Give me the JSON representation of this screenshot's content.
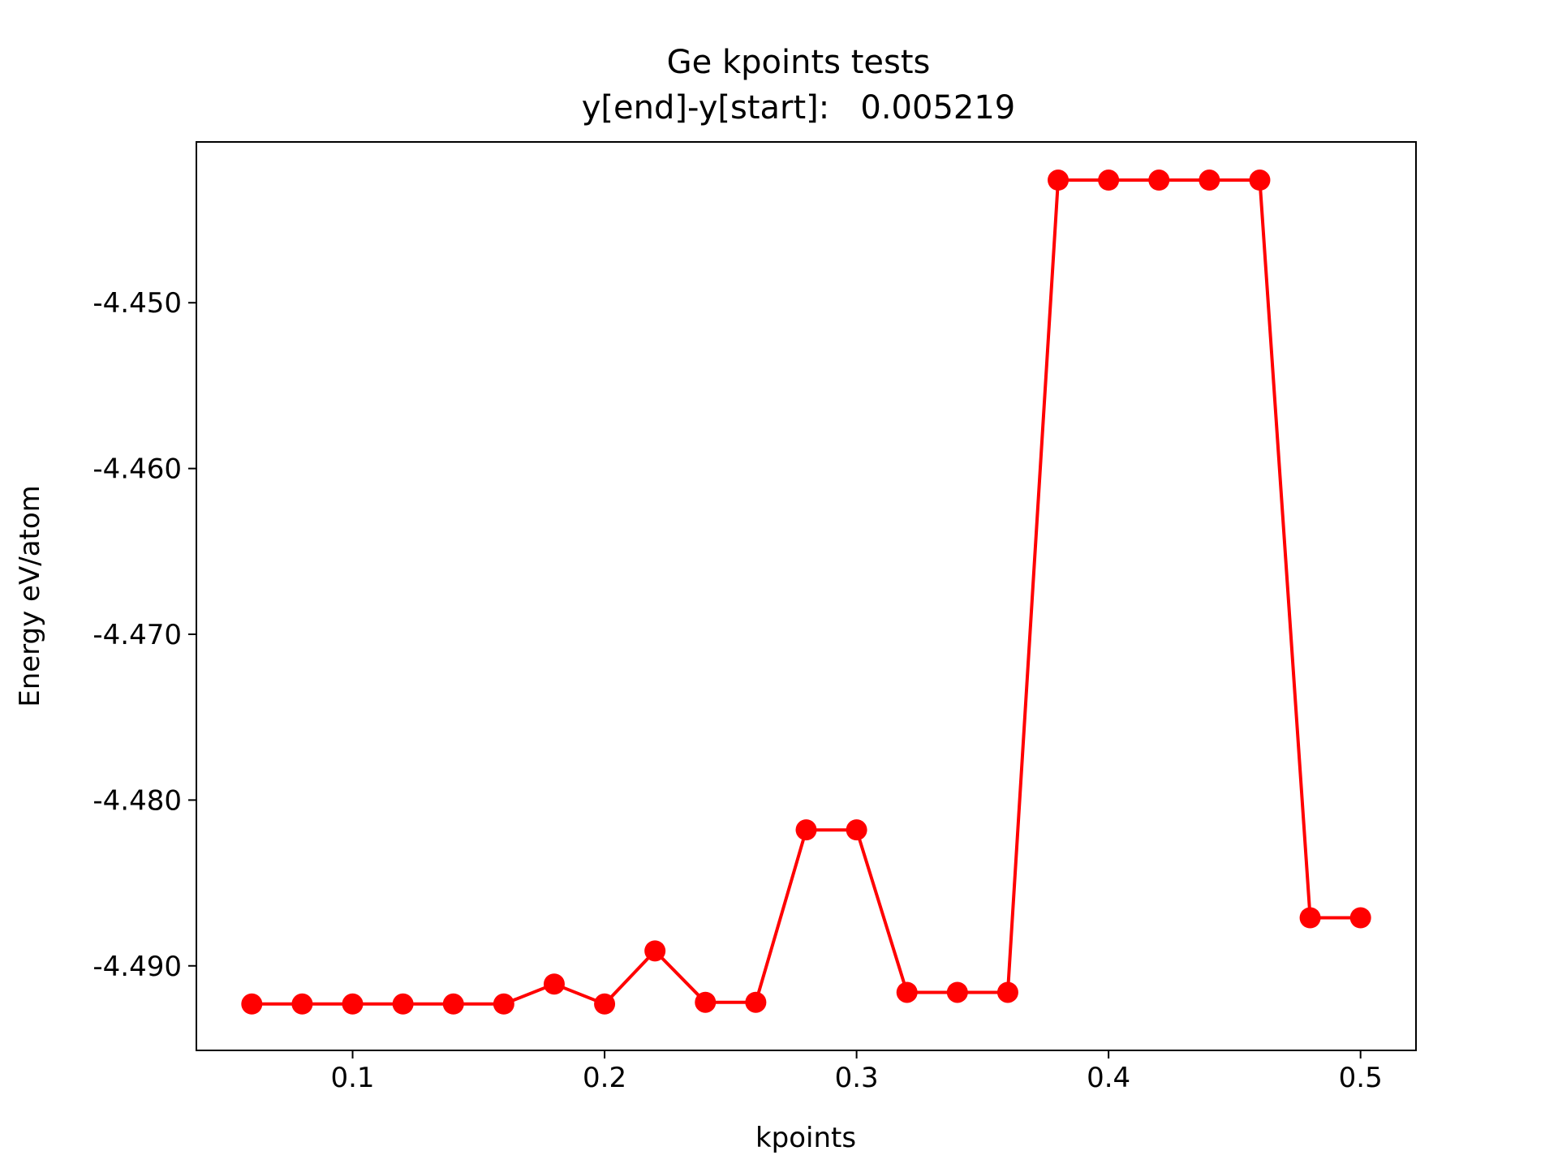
{
  "chart_data": {
    "type": "line",
    "title": "Ge kpoints tests",
    "subtitle": "y[end]-y[start]:   0.005219",
    "xlabel": "kpoints",
    "ylabel": "Energy eV/atom",
    "xlim": [
      0.038,
      0.522
    ],
    "ylim": [
      -4.4951,
      -4.4403
    ],
    "x_ticks": [
      0.1,
      0.2,
      0.3,
      0.4,
      0.5
    ],
    "x_tick_labels": [
      "0.1",
      "0.2",
      "0.3",
      "0.4",
      "0.5"
    ],
    "y_ticks": [
      -4.45,
      -4.46,
      -4.47,
      -4.48,
      -4.49
    ],
    "y_tick_labels": [
      "-4.450",
      "-4.460",
      "-4.470",
      "-4.480",
      "-4.490"
    ],
    "grid": false,
    "series": [
      {
        "color": "#ff0000",
        "marker": "circle",
        "x": [
          0.06,
          0.08,
          0.1,
          0.12,
          0.14,
          0.16,
          0.18,
          0.2,
          0.22,
          0.24,
          0.26,
          0.28,
          0.3,
          0.32,
          0.34,
          0.36,
          0.38,
          0.4,
          0.42,
          0.44,
          0.46,
          0.48,
          0.5
        ],
        "y": [
          -4.4923,
          -4.4923,
          -4.4923,
          -4.4923,
          -4.4923,
          -4.4923,
          -4.4911,
          -4.4923,
          -4.4891,
          -4.4922,
          -4.4922,
          -4.4818,
          -4.4818,
          -4.4916,
          -4.4916,
          -4.4916,
          -4.4426,
          -4.4426,
          -4.4426,
          -4.4426,
          -4.4426,
          -4.4871,
          -4.4871
        ]
      }
    ]
  }
}
